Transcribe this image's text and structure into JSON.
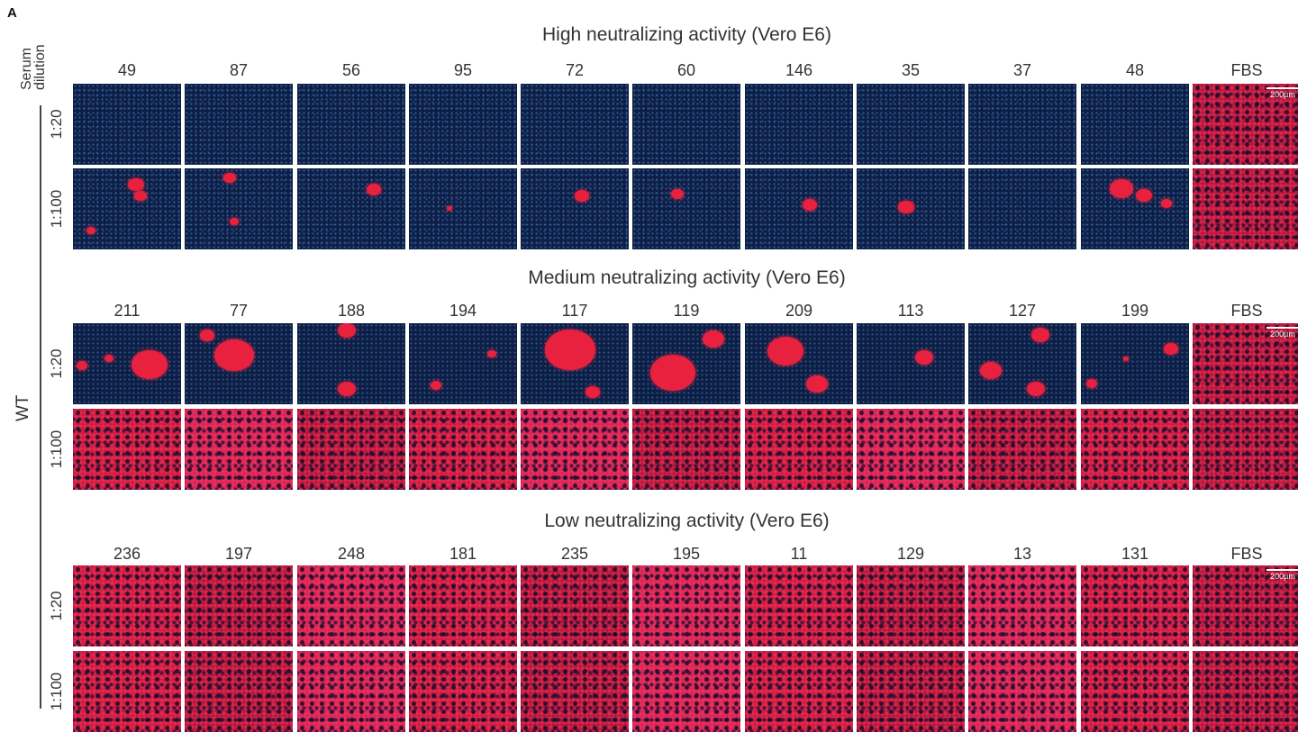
{
  "panel_letter": "A",
  "serum_dilution_label": [
    "Serum",
    "dilution"
  ],
  "strain": "WT",
  "scale_bar": "200µm",
  "sections": [
    {
      "title": "High neutralizing activity (Vero E6)",
      "columns": [
        "49",
        "87",
        "56",
        "95",
        "72",
        "60",
        "146",
        "35",
        "37",
        "48",
        "FBS"
      ],
      "rows": [
        "1:20",
        "1:100"
      ]
    },
    {
      "title": "Medium neutralizing activity (Vero E6)",
      "columns": [
        "211",
        "77",
        "188",
        "194",
        "117",
        "119",
        "209",
        "113",
        "127",
        "199",
        "FBS"
      ],
      "rows": [
        "1:20",
        "1:100"
      ]
    },
    {
      "title": "Low neutralizing activity (Vero E6)",
      "columns": [
        "236",
        "197",
        "248",
        "181",
        "235",
        "195",
        "11",
        "129",
        "13",
        "131",
        "FBS"
      ],
      "rows": [
        "1:20",
        "1:100"
      ]
    }
  ]
}
